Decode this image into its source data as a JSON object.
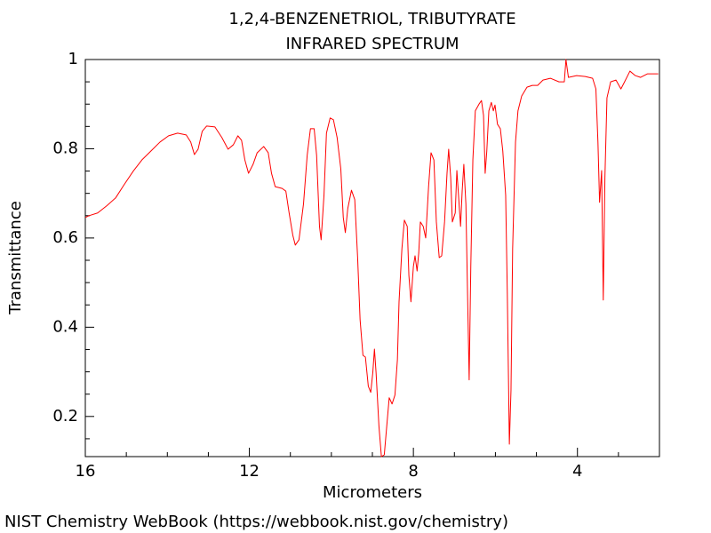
{
  "chart_data": {
    "type": "line",
    "title": "1,2,4-BENZENETRIOL, TRIBUTYRATE",
    "subtitle": "INFRARED SPECTRUM",
    "x_label": "Micrometers",
    "y_label": "Transmittance",
    "source": "NIST Chemistry WebBook (https://webbook.nist.gov/chemistry)",
    "xlim": [
      16,
      2
    ],
    "ylim": [
      0.11,
      1
    ],
    "xticks": [
      16,
      12,
      8,
      4
    ],
    "yticks": [
      0.2,
      0.4,
      0.6,
      0.8,
      1
    ],
    "xminorticks": [
      15,
      14,
      13,
      11,
      10,
      9,
      7,
      6,
      5,
      3
    ],
    "yminorticks": [
      0.15,
      0.25,
      0.3,
      0.35,
      0.45,
      0.5,
      0.55,
      0.65,
      0.7,
      0.75,
      0.85,
      0.9,
      0.95
    ],
    "grid": false,
    "series": [
      {
        "color": "#ff0000",
        "x": [
          16,
          15.91,
          15.7,
          15.48,
          15.26,
          15.05,
          14.83,
          14.62,
          14.4,
          14.18,
          13.97,
          13.75,
          13.54,
          13.43,
          13.34,
          13.25,
          13.15,
          13.04,
          12.84,
          12.67,
          12.52,
          12.39,
          12.28,
          12.19,
          12.11,
          12.02,
          11.91,
          11.81,
          11.65,
          11.54,
          11.46,
          11.37,
          11.2,
          11.11,
          11.03,
          10.94,
          10.88,
          10.79,
          10.68,
          10.59,
          10.51,
          10.42,
          10.36,
          10.29,
          10.25,
          10.18,
          10.12,
          10.03,
          9.95,
          9.86,
          9.77,
          9.71,
          9.66,
          9.6,
          9.51,
          9.43,
          9.36,
          9.3,
          9.23,
          9.17,
          9.1,
          9.04,
          8.99,
          8.95,
          8.91,
          8.84,
          8.78,
          8.71,
          8.65,
          8.59,
          8.52,
          8.45,
          8.39,
          8.35,
          8.28,
          8.22,
          8.15,
          8.11,
          8.06,
          8.0,
          7.96,
          7.91,
          7.87,
          7.83,
          7.76,
          7.7,
          7.63,
          7.57,
          7.5,
          7.44,
          7.37,
          7.31,
          7.24,
          7.18,
          7.14,
          7.09,
          7.05,
          6.98,
          6.94,
          6.9,
          6.85,
          6.81,
          6.77,
          6.72,
          6.68,
          6.64,
          6.6,
          6.55,
          6.49,
          6.4,
          6.34,
          6.29,
          6.25,
          6.21,
          6.16,
          6.1,
          6.05,
          6.01,
          5.95,
          5.88,
          5.82,
          5.75,
          5.71,
          5.66,
          5.62,
          5.58,
          5.51,
          5.45,
          5.36,
          5.23,
          5.1,
          4.97,
          4.84,
          4.66,
          4.45,
          4.32,
          4.28,
          4.22,
          4.02,
          3.81,
          3.63,
          3.55,
          3.5,
          3.46,
          3.41,
          3.37,
          3.33,
          3.28,
          3.19,
          3.06,
          2.94,
          2.85,
          2.72,
          2.59,
          2.46,
          2.29,
          2.03
        ],
        "values": [
          0.646,
          0.65,
          0.656,
          0.672,
          0.69,
          0.72,
          0.75,
          0.775,
          0.795,
          0.815,
          0.829,
          0.835,
          0.831,
          0.815,
          0.787,
          0.799,
          0.839,
          0.851,
          0.849,
          0.825,
          0.799,
          0.809,
          0.829,
          0.819,
          0.775,
          0.745,
          0.765,
          0.791,
          0.805,
          0.791,
          0.745,
          0.715,
          0.711,
          0.705,
          0.656,
          0.606,
          0.584,
          0.596,
          0.676,
          0.785,
          0.845,
          0.845,
          0.785,
          0.626,
          0.596,
          0.696,
          0.835,
          0.869,
          0.865,
          0.825,
          0.755,
          0.646,
          0.612,
          0.666,
          0.707,
          0.686,
          0.556,
          0.417,
          0.337,
          0.333,
          0.268,
          0.254,
          0.298,
          0.351,
          0.298,
          0.178,
          0.11,
          0.114,
          0.178,
          0.242,
          0.228,
          0.248,
          0.327,
          0.457,
          0.576,
          0.64,
          0.626,
          0.516,
          0.457,
          0.536,
          0.56,
          0.526,
          0.566,
          0.636,
          0.626,
          0.6,
          0.715,
          0.791,
          0.775,
          0.636,
          0.556,
          0.56,
          0.636,
          0.745,
          0.799,
          0.735,
          0.636,
          0.656,
          0.751,
          0.696,
          0.626,
          0.706,
          0.765,
          0.676,
          0.477,
          0.282,
          0.536,
          0.775,
          0.885,
          0.9,
          0.908,
          0.875,
          0.745,
          0.795,
          0.885,
          0.904,
          0.885,
          0.898,
          0.855,
          0.845,
          0.795,
          0.696,
          0.477,
          0.138,
          0.258,
          0.576,
          0.815,
          0.885,
          0.918,
          0.938,
          0.942,
          0.942,
          0.954,
          0.958,
          0.95,
          0.95,
          1.0,
          0.96,
          0.964,
          0.962,
          0.958,
          0.934,
          0.815,
          0.68,
          0.751,
          0.461,
          0.735,
          0.914,
          0.95,
          0.954,
          0.934,
          0.95,
          0.974,
          0.964,
          0.96,
          0.968,
          0.968
        ]
      }
    ]
  }
}
